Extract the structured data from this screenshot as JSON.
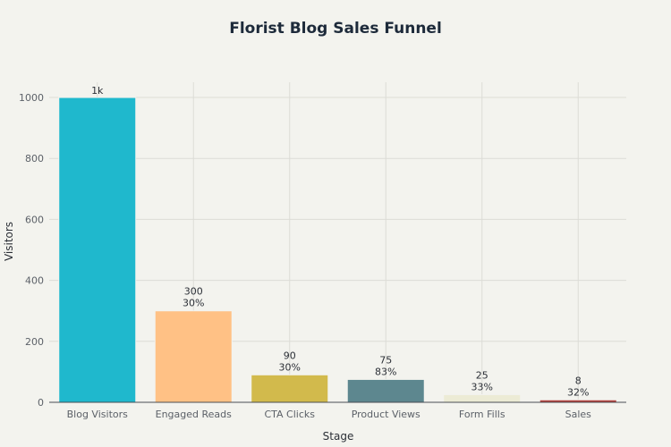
{
  "chart_data": {
    "type": "bar",
    "title": "Florist Blog Sales Funnel",
    "xlabel": "Stage",
    "ylabel": "Visitors",
    "categories": [
      "Blog Visitors",
      "Engaged Reads",
      "CTA Clicks",
      "Product Views",
      "Form Fills",
      "Sales"
    ],
    "values": [
      1000,
      300,
      90,
      75,
      25,
      8
    ],
    "value_labels": [
      "1k",
      "300",
      "90",
      "75",
      "25",
      "8"
    ],
    "conversion_labels": [
      "",
      "30%",
      "30%",
      "83%",
      "33%",
      "32%"
    ],
    "colors": [
      "#1fb8cd",
      "#ffc185",
      "#d2ba4c",
      "#5d878f",
      "#ecebd5",
      "#b4413c"
    ],
    "bar_outline": "#f3f3ee",
    "ylim": [
      0,
      1050
    ],
    "yticks": [
      0,
      200,
      400,
      600,
      800,
      1000
    ],
    "grid": true
  }
}
